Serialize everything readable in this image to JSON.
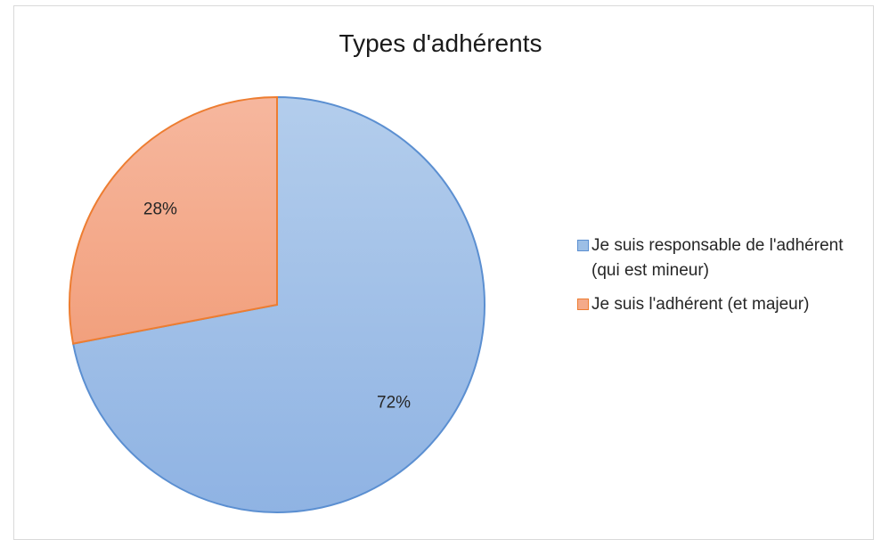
{
  "chart_data": {
    "type": "pie",
    "title": "Types d'adhérents",
    "categories": [
      "Je suis responsable de l'adhérent (qui est mineur)",
      "Je suis l'adhérent (et majeur)"
    ],
    "values": [
      72,
      28
    ],
    "data_labels": [
      "72%",
      "28%"
    ],
    "colors": [
      "#9dbfe6",
      "#f4aa8a"
    ],
    "stroke_colors": [
      "#5b8fd1",
      "#ed7d31"
    ],
    "legend_position": "right"
  }
}
